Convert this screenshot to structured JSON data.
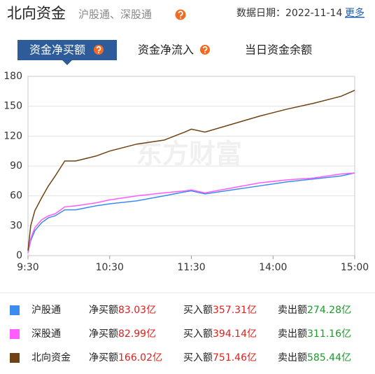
{
  "header": {
    "title": "北向资金",
    "subtitle": "沪股通、深股通",
    "date_label": "数据日期：2022-11-14",
    "more": "更多"
  },
  "tabs": [
    "资金净买额",
    "资金净流入",
    "当日资金余额"
  ],
  "chart_data": {
    "type": "line",
    "watermark": "东方财富",
    "x": [
      0,
      2,
      5,
      10,
      15,
      20,
      27,
      35,
      50,
      60,
      80,
      100,
      115,
      120,
      130,
      150,
      170,
      190,
      210,
      230,
      240
    ],
    "xlim": [
      0,
      240
    ],
    "xticks": [
      {
        "value": 0,
        "label": "9:30"
      },
      {
        "value": 60,
        "label": "10:30"
      },
      {
        "value": 120,
        "label": "11:30"
      },
      {
        "value": 180,
        "label": "14:00"
      },
      {
        "value": 240,
        "label": "15:00"
      }
    ],
    "ylim": [
      0,
      180
    ],
    "yticks": [
      0,
      30,
      60,
      90,
      120,
      150,
      180
    ],
    "grid": true,
    "series": [
      {
        "name": "沪股通",
        "color": "#3c8cf0",
        "values": [
          3,
          15,
          25,
          33,
          38,
          40,
          46,
          46,
          50,
          52,
          55,
          60,
          64,
          65,
          62,
          66,
          70,
          74,
          77,
          80,
          83.03
        ]
      },
      {
        "name": "深股通",
        "color": "#ff5cff",
        "values": [
          3,
          17,
          28,
          36,
          40,
          42,
          49,
          50,
          53,
          56,
          60,
          63,
          65,
          66,
          63,
          68,
          73,
          76,
          78,
          82,
          82.99
        ]
      },
      {
        "name": "北向资金",
        "color": "#6e4212",
        "values": [
          5,
          30,
          45,
          58,
          70,
          80,
          95,
          95,
          100,
          105,
          112,
          116,
          124,
          127,
          124,
          132,
          140,
          147,
          153,
          160,
          166.02
        ]
      }
    ]
  },
  "summary": {
    "rows": [
      {
        "net_label": "净买额",
        "net": "83.03亿",
        "buy_label": "买入额",
        "buy": "357.31亿",
        "sell_label": "卖出额",
        "sell": "274.28亿"
      },
      {
        "net_label": "净买额",
        "net": "82.99亿",
        "buy_label": "买入额",
        "buy": "394.14亿",
        "sell_label": "卖出额",
        "sell": "311.16亿"
      },
      {
        "net_label": "净买额",
        "net": "166.02亿",
        "buy_label": "买入额",
        "buy": "751.46亿",
        "sell_label": "卖出额",
        "sell": "585.44亿"
      }
    ]
  }
}
